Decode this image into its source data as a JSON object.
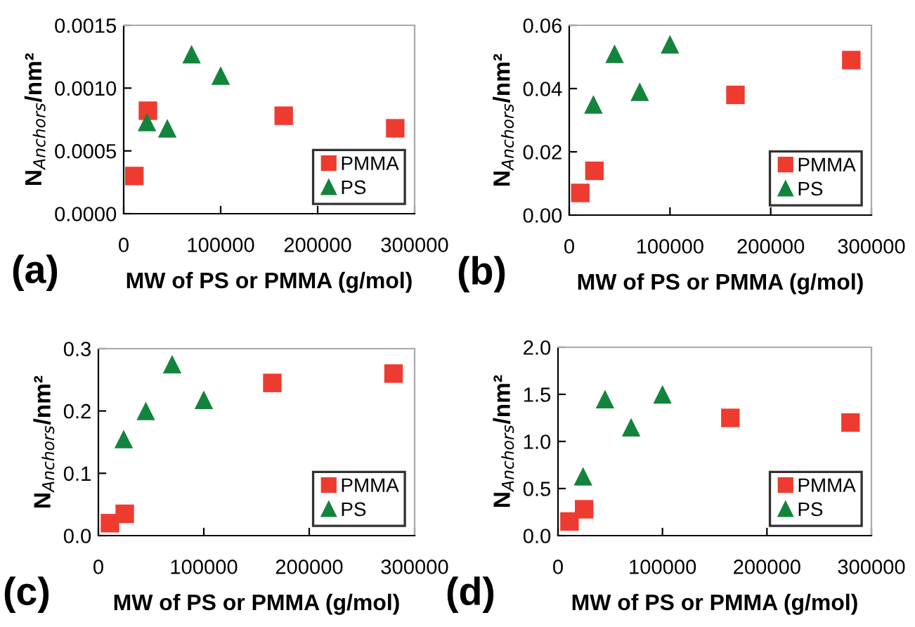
{
  "chart_data": [
    {
      "type": "scatter",
      "xlabel": "MW of PS or PMMA (g/mol)",
      "ylabel": "N$_{Anchors}$/nm²",
      "annotations": [
        "(a)"
      ],
      "xlim": [
        0,
        300000
      ],
      "xticks": [
        0,
        100000,
        200000,
        300000
      ],
      "ylim": [
        0,
        0.0015
      ],
      "yticks": [
        {
          "value": 0,
          "label": "0.0000"
        },
        {
          "value": 0.0005,
          "label": "0.0005"
        },
        {
          "value": 0.001,
          "label": "0.0010"
        },
        {
          "value": 0.0015,
          "label": "0.0015"
        }
      ],
      "legend": "bottom right",
      "grid": false,
      "series": [
        {
          "name": "PMMA",
          "color": "#ee3b30",
          "marker": "square",
          "x": [
            11000,
            25000,
            165000,
            280000
          ],
          "values": [
            0.0003,
            0.00082,
            0.00078,
            0.00068
          ]
        },
        {
          "name": "PS",
          "color": "#13843c",
          "marker": "triangle",
          "x": [
            24000,
            45000,
            70000,
            100000
          ],
          "values": [
            0.00073,
            0.00068,
            0.00127,
            0.0011
          ]
        }
      ]
    },
    {
      "type": "scatter",
      "xlabel": "MW of PS or PMMA (g/mol)",
      "ylabel": "N$_{Anchors}$/nm²",
      "annotations": [
        "(b)"
      ],
      "xlim": [
        0,
        300000
      ],
      "xticks": [
        0,
        100000,
        200000,
        300000
      ],
      "ylim": [
        0,
        0.06
      ],
      "yticks": [
        {
          "value": 0,
          "label": "0.00"
        },
        {
          "value": 0.02,
          "label": "0.02"
        },
        {
          "value": 0.04,
          "label": "0.04"
        },
        {
          "value": 0.06,
          "label": "0.06"
        }
      ],
      "legend": "bottom right",
      "grid": false,
      "series": [
        {
          "name": "PMMA",
          "color": "#ee3b30",
          "marker": "square",
          "x": [
            11000,
            25000,
            165000,
            280000
          ],
          "values": [
            0.007,
            0.014,
            0.038,
            0.049
          ]
        },
        {
          "name": "PS",
          "color": "#13843c",
          "marker": "triangle",
          "x": [
            24000,
            45000,
            70000,
            100000
          ],
          "values": [
            0.035,
            0.051,
            0.039,
            0.054
          ]
        }
      ]
    },
    {
      "type": "scatter",
      "xlabel": "MW of PS or PMMA (g/mol)",
      "ylabel": "N$_{Anchors}$/nm²",
      "annotations": [
        "(c)"
      ],
      "xlim": [
        0,
        300000
      ],
      "xticks": [
        0,
        100000,
        200000,
        300000
      ],
      "ylim": [
        0,
        0.3
      ],
      "yticks": [
        {
          "value": 0,
          "label": "0.0"
        },
        {
          "value": 0.1,
          "label": "0.1"
        },
        {
          "value": 0.2,
          "label": "0.2"
        },
        {
          "value": 0.3,
          "label": "0.3"
        }
      ],
      "legend": "bottom right",
      "grid": false,
      "series": [
        {
          "name": "PMMA",
          "color": "#ee3b30",
          "marker": "square",
          "x": [
            11000,
            25000,
            165000,
            280000
          ],
          "values": [
            0.02,
            0.035,
            0.245,
            0.26
          ]
        },
        {
          "name": "PS",
          "color": "#13843c",
          "marker": "triangle",
          "x": [
            24000,
            45000,
            70000,
            100000
          ],
          "values": [
            0.155,
            0.2,
            0.275,
            0.218
          ]
        }
      ]
    },
    {
      "type": "scatter",
      "xlabel": "MW of PS or PMMA (g/mol)",
      "ylabel": "N$_{Anchors}$/nm²",
      "annotations": [
        "(d)"
      ],
      "xlim": [
        0,
        300000
      ],
      "xticks": [
        0,
        100000,
        200000,
        300000
      ],
      "ylim": [
        0,
        2.0
      ],
      "yticks": [
        {
          "value": 0,
          "label": "0.0"
        },
        {
          "value": 0.5,
          "label": "0.5"
        },
        {
          "value": 1.0,
          "label": "1.0"
        },
        {
          "value": 1.5,
          "label": "1.5"
        },
        {
          "value": 2.0,
          "label": "2.0"
        }
      ],
      "legend": "bottom right",
      "grid": false,
      "series": [
        {
          "name": "PMMA",
          "color": "#ee3b30",
          "marker": "square",
          "x": [
            11000,
            25000,
            165000,
            280000
          ],
          "values": [
            0.15,
            0.28,
            1.25,
            1.2
          ]
        },
        {
          "name": "PS",
          "color": "#13843c",
          "marker": "triangle",
          "x": [
            24000,
            45000,
            70000,
            100000
          ],
          "values": [
            0.63,
            1.45,
            1.15,
            1.5
          ]
        }
      ]
    }
  ]
}
